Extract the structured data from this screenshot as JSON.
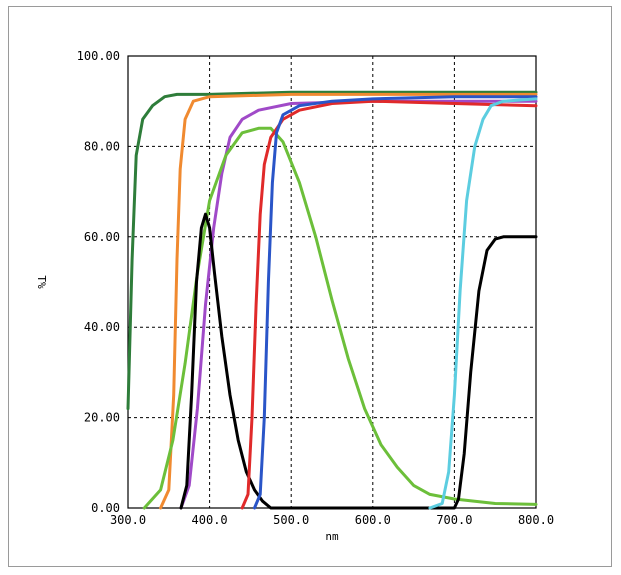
{
  "chart_data": {
    "type": "line",
    "xlabel": "nm",
    "ylabel": "T%",
    "xlim": [
      300,
      800
    ],
    "ylim": [
      0,
      100
    ],
    "x_ticks": [
      "300.0",
      "400.0",
      "500.0",
      "600.0",
      "700.0",
      "800.0"
    ],
    "y_ticks": [
      "0.00",
      "20.00",
      "40.00",
      "60.00",
      "80.00",
      "100.00"
    ],
    "grid": true,
    "series": [
      {
        "color": "#2e7d3a",
        "points": [
          [
            300,
            22
          ],
          [
            305,
            55
          ],
          [
            310,
            78
          ],
          [
            318,
            86
          ],
          [
            330,
            89
          ],
          [
            345,
            91
          ],
          [
            360,
            91.5
          ],
          [
            400,
            91.5
          ],
          [
            500,
            92
          ],
          [
            600,
            92
          ],
          [
            700,
            92
          ],
          [
            800,
            92
          ]
        ]
      },
      {
        "color": "#f08a30",
        "points": [
          [
            340,
            0
          ],
          [
            350,
            4
          ],
          [
            356,
            25
          ],
          [
            360,
            55
          ],
          [
            364,
            75
          ],
          [
            370,
            86
          ],
          [
            380,
            90
          ],
          [
            400,
            91
          ],
          [
            500,
            91.5
          ],
          [
            600,
            91.5
          ],
          [
            700,
            91.5
          ],
          [
            800,
            91.5
          ]
        ]
      },
      {
        "color": "#a04ac8",
        "points": [
          [
            365,
            0
          ],
          [
            375,
            5
          ],
          [
            385,
            22
          ],
          [
            395,
            45
          ],
          [
            405,
            62
          ],
          [
            415,
            74
          ],
          [
            425,
            82
          ],
          [
            440,
            86
          ],
          [
            460,
            88
          ],
          [
            500,
            89.5
          ],
          [
            600,
            90
          ],
          [
            700,
            90
          ],
          [
            800,
            90
          ]
        ]
      },
      {
        "color": "#6cbf3a",
        "points": [
          [
            320,
            0
          ],
          [
            340,
            4
          ],
          [
            355,
            15
          ],
          [
            370,
            32
          ],
          [
            385,
            52
          ],
          [
            400,
            68
          ],
          [
            420,
            78
          ],
          [
            440,
            83
          ],
          [
            460,
            84
          ],
          [
            475,
            84
          ],
          [
            490,
            81
          ],
          [
            510,
            72
          ],
          [
            530,
            60
          ],
          [
            550,
            46
          ],
          [
            570,
            33
          ],
          [
            590,
            22
          ],
          [
            610,
            14
          ],
          [
            630,
            9
          ],
          [
            650,
            5
          ],
          [
            670,
            3
          ],
          [
            700,
            2
          ],
          [
            750,
            1
          ],
          [
            800,
            0.8
          ]
        ]
      },
      {
        "color": "#000000",
        "points": [
          [
            365,
            0
          ],
          [
            372,
            5
          ],
          [
            378,
            25
          ],
          [
            384,
            50
          ],
          [
            390,
            62
          ],
          [
            395,
            65
          ],
          [
            400,
            62
          ],
          [
            406,
            52
          ],
          [
            415,
            38
          ],
          [
            425,
            25
          ],
          [
            435,
            15
          ],
          [
            445,
            8
          ],
          [
            455,
            4
          ],
          [
            465,
            1.5
          ],
          [
            475,
            0
          ],
          [
            700,
            0
          ],
          [
            705,
            2
          ],
          [
            712,
            12
          ],
          [
            720,
            30
          ],
          [
            730,
            48
          ],
          [
            740,
            57
          ],
          [
            750,
            59.5
          ],
          [
            760,
            60
          ],
          [
            800,
            60
          ]
        ]
      },
      {
        "color": "#e02a2a",
        "points": [
          [
            440,
            0
          ],
          [
            447,
            3
          ],
          [
            452,
            20
          ],
          [
            457,
            45
          ],
          [
            462,
            65
          ],
          [
            467,
            76
          ],
          [
            475,
            82
          ],
          [
            490,
            86
          ],
          [
            510,
            88
          ],
          [
            550,
            89.5
          ],
          [
            600,
            90
          ],
          [
            700,
            89.5
          ],
          [
            800,
            89
          ]
        ]
      },
      {
        "color": "#2a55c8",
        "points": [
          [
            455,
            0
          ],
          [
            462,
            3
          ],
          [
            467,
            20
          ],
          [
            472,
            50
          ],
          [
            477,
            72
          ],
          [
            482,
            83
          ],
          [
            490,
            87
          ],
          [
            510,
            89
          ],
          [
            550,
            90
          ],
          [
            600,
            90.5
          ],
          [
            700,
            91
          ],
          [
            800,
            91
          ]
        ]
      },
      {
        "color": "#5ccde0",
        "points": [
          [
            670,
            0
          ],
          [
            685,
            1
          ],
          [
            693,
            8
          ],
          [
            700,
            25
          ],
          [
            707,
            48
          ],
          [
            715,
            68
          ],
          [
            725,
            80
          ],
          [
            735,
            86
          ],
          [
            745,
            89
          ],
          [
            760,
            90
          ],
          [
            800,
            90.5
          ]
        ]
      }
    ]
  }
}
